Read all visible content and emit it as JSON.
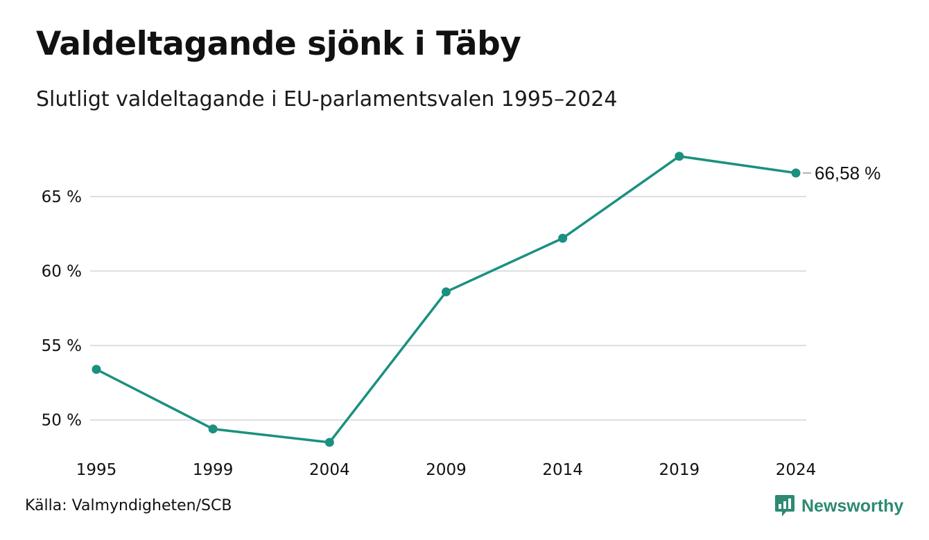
{
  "title": "Valdeltagande sjönk i Täby",
  "subtitle": "Slutligt valdeltagande i EU-parlamentsvalen 1995–2024",
  "source": "Källa: Valmyndigheten/SCB",
  "brand": "Newsworthy",
  "colors": {
    "line": "#1a9080",
    "grid": "#dddddd",
    "brand": "#2d8a73"
  },
  "chart_data": {
    "type": "line",
    "categories": [
      "1995",
      "1999",
      "2004",
      "2009",
      "2014",
      "2019",
      "2024"
    ],
    "series": [
      {
        "values": [
          53.4,
          49.4,
          48.5,
          58.6,
          62.2,
          67.7,
          66.58
        ]
      }
    ],
    "y_ticks": [
      50,
      55,
      60,
      65
    ],
    "y_tick_labels": [
      "50 %",
      "55 %",
      "60 %",
      "65 %"
    ],
    "ylim": [
      46.5,
      69.5
    ],
    "grid": true,
    "end_label": "66,58 %"
  }
}
